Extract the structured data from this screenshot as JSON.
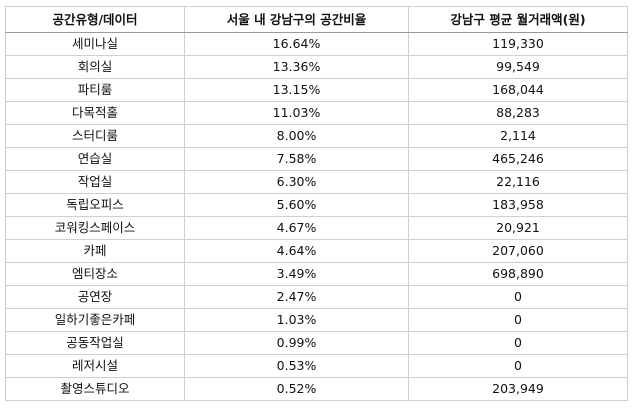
{
  "table": {
    "headers": [
      "공간유형/데이터",
      "서울 내 강남구의 공간비율",
      "강남구 평균 월거래액(원)"
    ],
    "rows": [
      [
        "세미나실",
        "16.64%",
        "119,330"
      ],
      [
        "회의실",
        "13.36%",
        "99,549"
      ],
      [
        "파티룸",
        "13.15%",
        "168,044"
      ],
      [
        "다목적홀",
        "11.03%",
        "88,283"
      ],
      [
        "스터디룸",
        "8.00%",
        "2,114"
      ],
      [
        "연습실",
        "7.58%",
        "465,246"
      ],
      [
        "작업실",
        "6.30%",
        "22,116"
      ],
      [
        "독립오피스",
        "5.60%",
        "183,958"
      ],
      [
        "코워킹스페이스",
        "4.67%",
        "20,921"
      ],
      [
        "카페",
        "4.64%",
        "207,060"
      ],
      [
        "엠티장소",
        "3.49%",
        "698,890"
      ],
      [
        "공연장",
        "2.47%",
        "0"
      ],
      [
        "일하기좋은카페",
        "1.03%",
        "0"
      ],
      [
        "공동작업실",
        "0.99%",
        "0"
      ],
      [
        "레저시설",
        "0.53%",
        "0"
      ],
      [
        "촬영스튜디오",
        "0.52%",
        "203,949"
      ]
    ]
  }
}
